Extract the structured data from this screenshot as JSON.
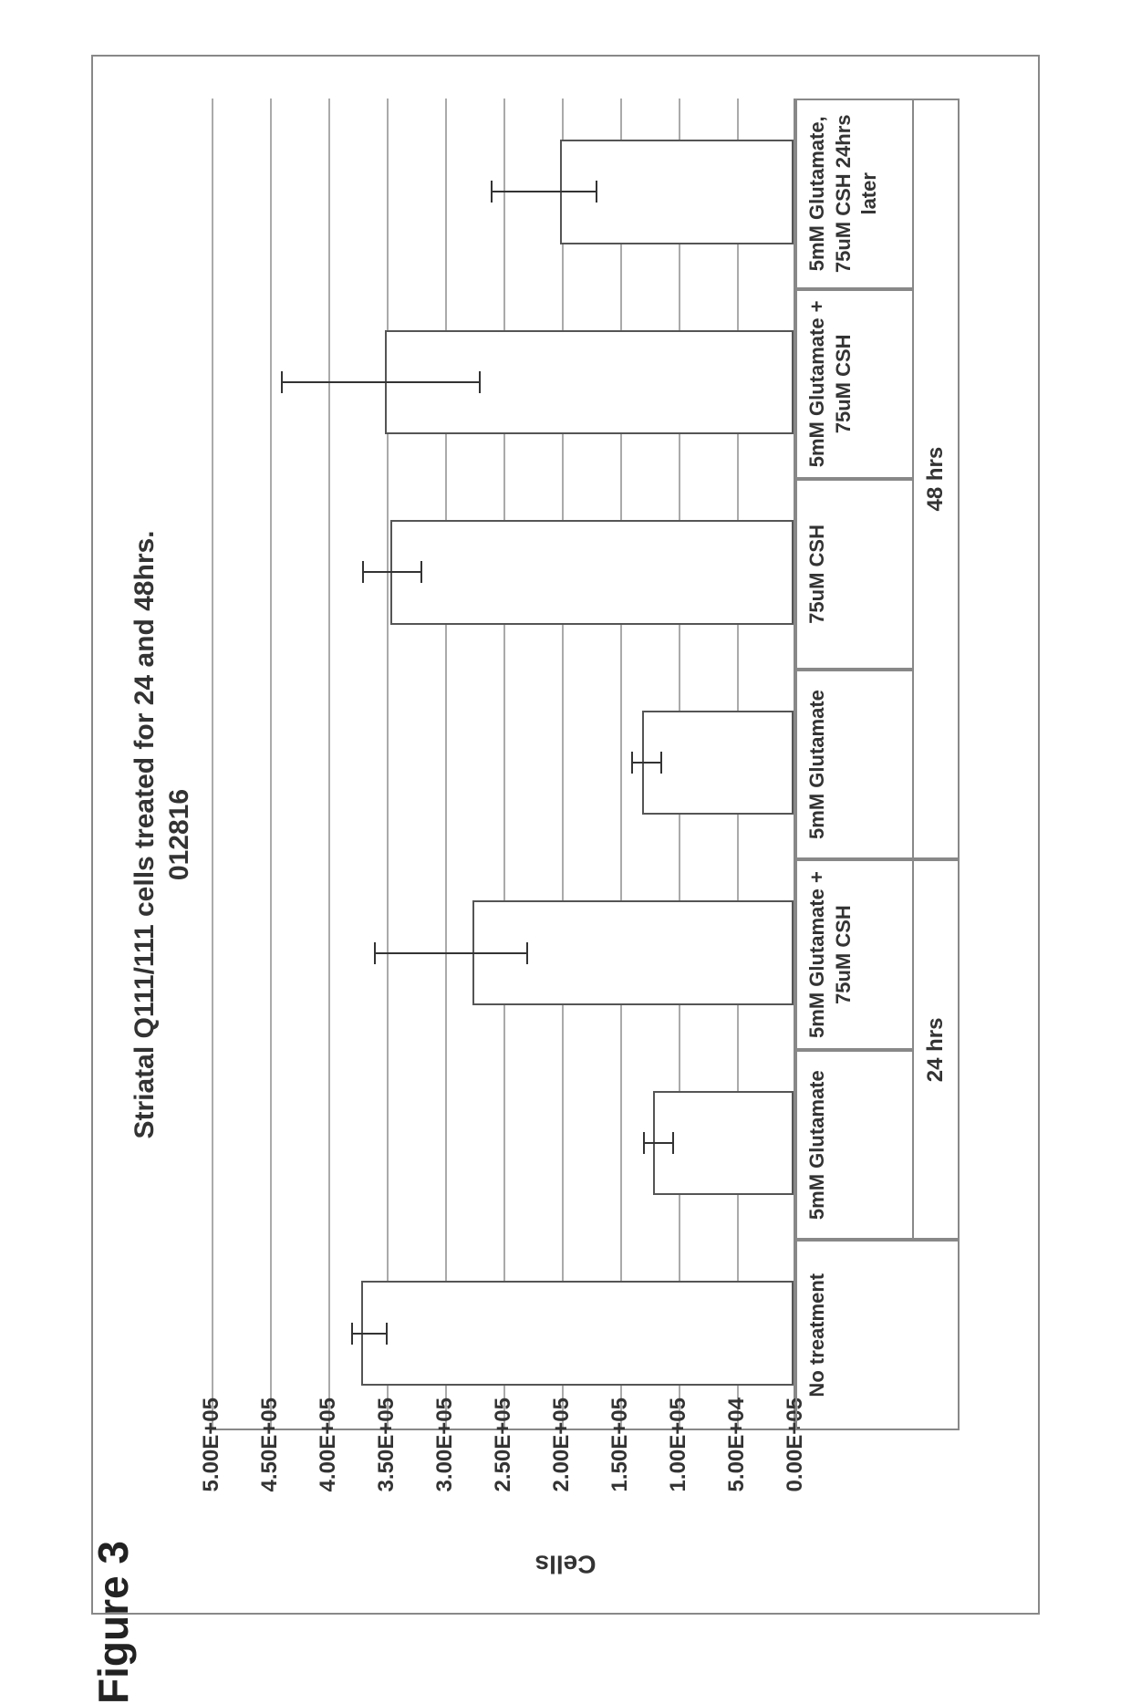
{
  "figure_label": "Figure 3",
  "chart": {
    "type": "bar",
    "title": "Striatal Q111/111 cells treated for 24 and 48hrs.",
    "subtitle": "012816",
    "y_axis_label": "Cells",
    "y_ticks": [
      "0.00E+05",
      "5.00E+04",
      "1.00E+05",
      "1.50E+05",
      "2.00E+05",
      "2.50E+05",
      "3.00E+05",
      "3.50E+05",
      "4.00E+05",
      "4.50E+05",
      "5.00E+05"
    ],
    "ylim": [
      0,
      500000
    ],
    "ytick_step": 50000,
    "background_color": "#ffffff",
    "grid_color": "#aaaaaa",
    "border_color": "#888888",
    "bar_color": "#ffffff",
    "bar_border_color": "#555555",
    "error_color": "#333333",
    "title_fontsize": 30,
    "label_fontsize": 24,
    "bars": [
      {
        "label": "No treatment",
        "value": 370000,
        "err_low": 350000,
        "err_high": 380000,
        "group": "none"
      },
      {
        "label": "5mM Glutamate",
        "value": 120000,
        "err_low": 105000,
        "err_high": 130000,
        "group": "24 hrs"
      },
      {
        "label": "5mM Glutamate + 75uM CSH",
        "value": 275000,
        "err_low": 230000,
        "err_high": 360000,
        "group": "24 hrs"
      },
      {
        "label": "5mM Glutamate",
        "value": 130000,
        "err_low": 115000,
        "err_high": 140000,
        "group": "48 hrs"
      },
      {
        "label": "75uM CSH",
        "value": 345000,
        "err_low": 320000,
        "err_high": 370000,
        "group": "48 hrs"
      },
      {
        "label": "5mM Glutamate + 75uM CSH",
        "value": 350000,
        "err_low": 270000,
        "err_high": 440000,
        "group": "48 hrs"
      },
      {
        "label": "5mM Glutamate, 75uM CSH 24hrs later",
        "value": 200000,
        "err_low": 170000,
        "err_high": 260000,
        "group": "48 hrs"
      }
    ],
    "groups": [
      {
        "label": "No treatment",
        "span": [
          0,
          0
        ]
      },
      {
        "label": "24 hrs",
        "span": [
          1,
          2
        ]
      },
      {
        "label": "48 hrs",
        "span": [
          3,
          6
        ]
      }
    ]
  }
}
